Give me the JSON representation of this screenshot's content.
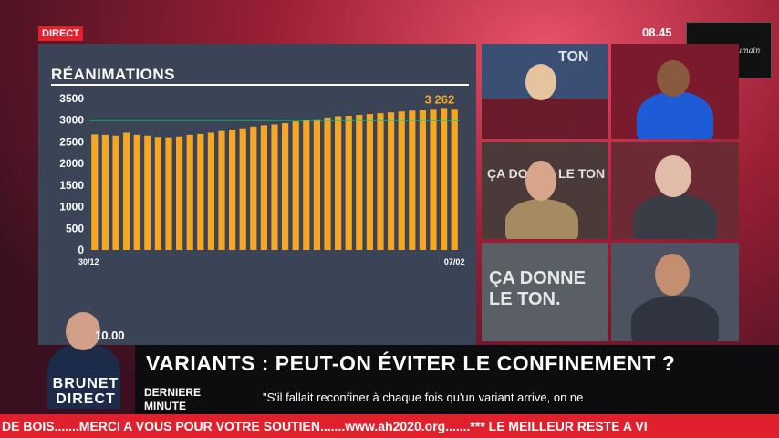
{
  "broadcast": {
    "live_label": "DIRECT",
    "clock": "08.45",
    "logo_text": "L'Avenir Humain",
    "presenter_time": "10.00",
    "show_name_line1": "BRUNET",
    "show_name_line2": "DIRECT"
  },
  "lower_third": {
    "headline": "VARIANTS : PEUT-ON ÉVITER LE CONFINEMENT ?",
    "label_line1": "DERNIERE",
    "label_line2": "MINUTE",
    "quote": "\"S'il fallait reconfiner à chaque fois qu'un variant arrive, on ne",
    "crawl": "DE BOIS.......MERCI A VOUS POUR VOTRE SOUTIEN.......www.ah2020.org.......*** LE MEILLEUR RESTE A VI"
  },
  "panels": {
    "studio_text_1": "TON",
    "studio_text_2": "ÇA DONNE LE TON",
    "studio_text_3": "ÇA DONNE LE TON."
  },
  "colors": {
    "bar": "#f5a623",
    "accent": "#e2212d",
    "threshold": "#2bb673"
  },
  "chart_data": {
    "type": "bar",
    "title": "RÉANIMATIONS",
    "ylim": [
      0,
      3500
    ],
    "yticks": [
      0,
      500,
      1000,
      1500,
      2000,
      2500,
      3000,
      3500
    ],
    "x_start_label": "30/12",
    "x_end_label": "07/02",
    "last_value_label": "3 262",
    "threshold": 3000,
    "values": [
      2670,
      2660,
      2640,
      2710,
      2660,
      2640,
      2610,
      2600,
      2620,
      2660,
      2680,
      2710,
      2750,
      2780,
      2810,
      2850,
      2880,
      2900,
      2930,
      2970,
      3000,
      3020,
      3060,
      3090,
      3100,
      3120,
      3140,
      3160,
      3180,
      3200,
      3220,
      3240,
      3260,
      3280,
      3262
    ]
  }
}
